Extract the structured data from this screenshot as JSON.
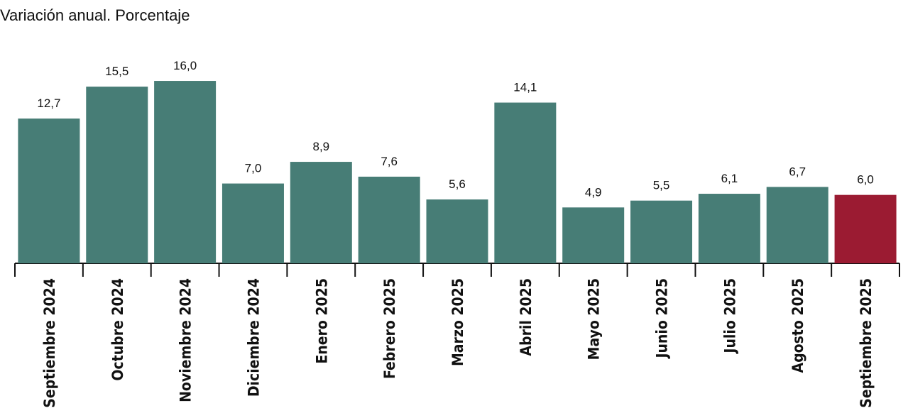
{
  "chart_data": {
    "type": "bar",
    "title": "Variación anual. Porcentaje",
    "categories": [
      "Septiembre 2024",
      "Octubre 2024",
      "Noviembre 2024",
      "Diciembre 2024",
      "Enero 2025",
      "Febrero 2025",
      "Marzo 2025",
      "Abril 2025",
      "Mayo 2025",
      "Junio 2025",
      "Julio 2025",
      "Agosto 2025",
      "Septiembre 2025"
    ],
    "values": [
      12.7,
      15.5,
      16.0,
      7.0,
      8.9,
      7.6,
      5.6,
      14.1,
      4.9,
      5.5,
      6.1,
      6.7,
      6.0
    ],
    "value_labels": [
      "12,7",
      "15,5",
      "16,0",
      "7,0",
      "8,9",
      "7,6",
      "5,6",
      "14,1",
      "4,9",
      "5,5",
      "6,1",
      "6,7",
      "6,0"
    ],
    "colors": [
      "#477d76",
      "#477d76",
      "#477d76",
      "#477d76",
      "#477d76",
      "#477d76",
      "#477d76",
      "#477d76",
      "#477d76",
      "#477d76",
      "#477d76",
      "#477d76",
      "#9b1b32"
    ]
  }
}
